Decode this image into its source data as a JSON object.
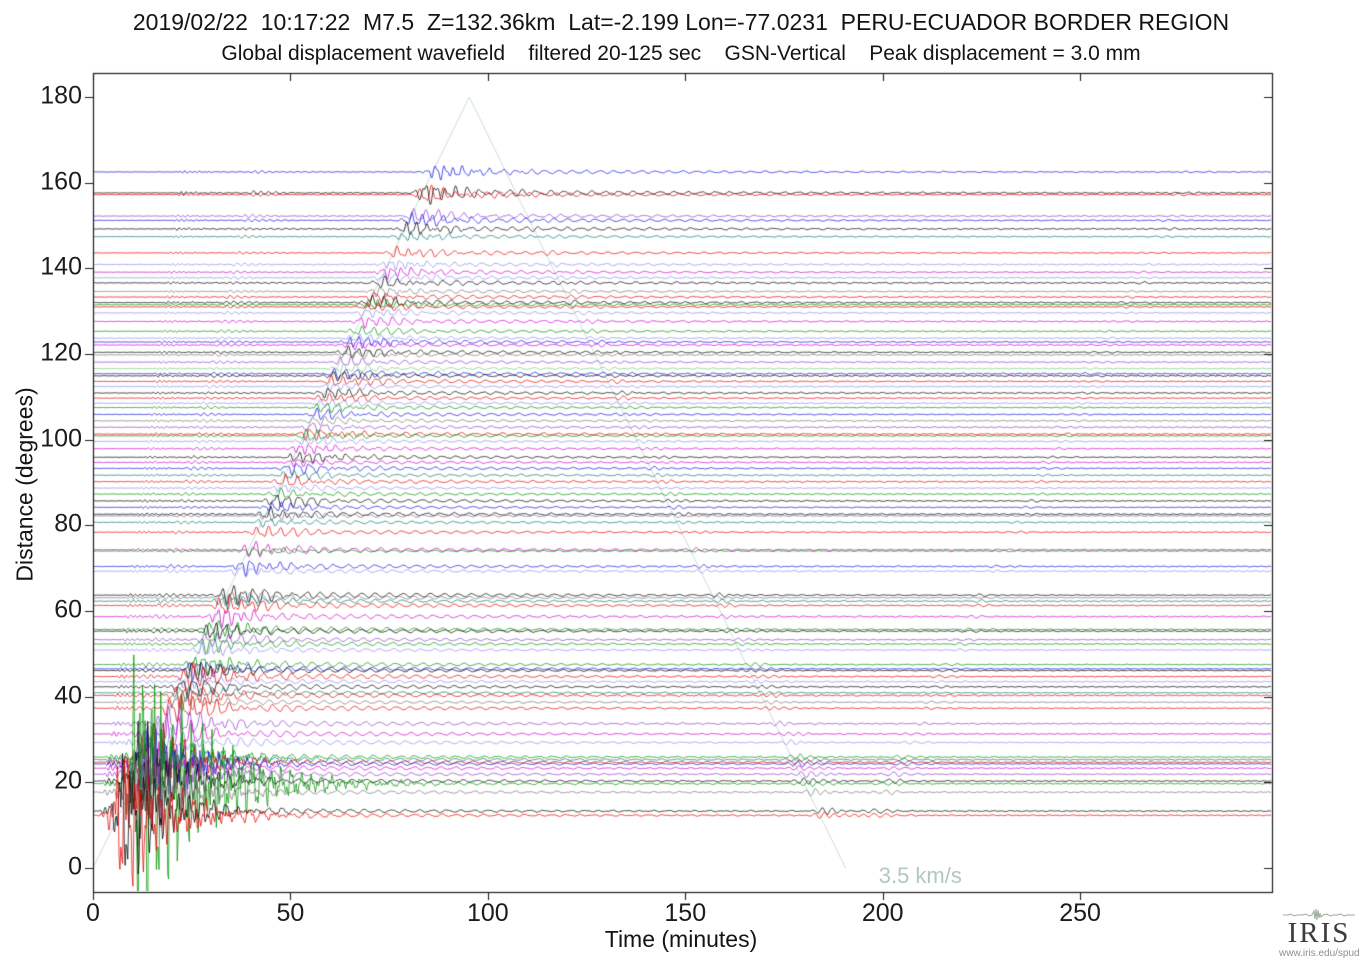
{
  "header": {
    "title_line1": "2019/02/22  10:17:22  M7.5  Z=132.36km  Lat=-2.199 Lon=-77.0231  PERU-ECUADOR BORDER REGION",
    "title_line2": "Global displacement wavefield    filtered 20-125 sec    GSN-Vertical    Peak displacement = 3.0 mm",
    "event": {
      "date": "2019/02/22",
      "time": "10:17:22",
      "magnitude": "M7.5",
      "depth": "Z=132.36km",
      "lat": "Lat=-2.199",
      "lon": "Lon=-77.0231",
      "region": "PERU-ECUADOR BORDER REGION",
      "wavefield": "Global displacement wavefield",
      "filter": "filtered 20-125 sec",
      "component": "GSN-Vertical",
      "peak": "Peak displacement = 3.0 mm"
    }
  },
  "footer": {
    "brand": "IRIS",
    "url": "www.iris.edu/spud"
  },
  "chart_data": {
    "type": "line",
    "subtype": "seismic-record-section",
    "title": "2019/02/22  10:17:22  M7.5  Z=132.36km  Lat=-2.199 Lon=-77.0231  PERU-ECUADOR BORDER REGION",
    "subtitle": "Global displacement wavefield    filtered 20-125 sec    GSN-Vertical    Peak displacement = 3.0 mm",
    "xlabel": "Time (minutes)",
    "ylabel": "Distance (degrees)",
    "xlim": [
      0,
      298.6
    ],
    "ylim": [
      -5.6,
      185.6
    ],
    "x_ticks": [
      0,
      50,
      100,
      150,
      200,
      250
    ],
    "y_ticks": [
      0,
      20,
      40,
      60,
      80,
      100,
      120,
      140,
      160,
      180
    ],
    "grid": false,
    "legend": "none",
    "moveout": {
      "label": "3.5 km/s",
      "velocity_km_s": 3.5,
      "color": "#ccdcdc",
      "vertices_time_dist": [
        [
          0,
          0
        ],
        [
          95.3,
          180
        ],
        [
          190.6,
          0
        ]
      ],
      "label_pos_time_dist": [
        199.0,
        -1.8
      ]
    },
    "palette": {
      "k": "#000000",
      "r": "#e80000",
      "b": "#1414e0",
      "lb": "#8c8cf0",
      "g": "#009300",
      "lg": "#74d074",
      "m": "#d000d0",
      "v": "#9040c8",
      "t": "#107878",
      "gy": "#787878"
    },
    "axis_color": "#1c1c1c",
    "traces_note": "each trace = one GSN station seismogram plotted at its epicentral distance; d=distance(deg), c=color key, a=peak surface-wave amplitude (px of plot)",
    "traces": [
      {
        "d": 162.5,
        "c": "b",
        "a": 9
      },
      {
        "d": 157.6,
        "c": "k",
        "a": 13
      },
      {
        "d": 157.2,
        "c": "r",
        "a": 10
      },
      {
        "d": 152.2,
        "c": "v",
        "a": 8
      },
      {
        "d": 151.2,
        "c": "b",
        "a": 9
      },
      {
        "d": 149.2,
        "c": "k",
        "a": 8
      },
      {
        "d": 147.4,
        "c": "t",
        "a": 6
      },
      {
        "d": 143.6,
        "c": "r",
        "a": 7
      },
      {
        "d": 140.9,
        "c": "lb",
        "a": 6
      },
      {
        "d": 139.1,
        "c": "m",
        "a": 7
      },
      {
        "d": 137.8,
        "c": "lb",
        "a": 6
      },
      {
        "d": 136.6,
        "c": "k",
        "a": 7
      },
      {
        "d": 134.6,
        "c": "gy",
        "a": 6
      },
      {
        "d": 133.3,
        "c": "r",
        "a": 7
      },
      {
        "d": 132.0,
        "c": "k",
        "a": 8
      },
      {
        "d": 131.5,
        "c": "g",
        "a": 7
      },
      {
        "d": 131.0,
        "c": "r",
        "a": 6
      },
      {
        "d": 129.6,
        "c": "lb",
        "a": 6
      },
      {
        "d": 127.6,
        "c": "m",
        "a": 7
      },
      {
        "d": 125.3,
        "c": "g",
        "a": 6
      },
      {
        "d": 123.7,
        "c": "lb",
        "a": 5
      },
      {
        "d": 122.8,
        "c": "b",
        "a": 7
      },
      {
        "d": 122.1,
        "c": "m",
        "a": 5
      },
      {
        "d": 120.4,
        "c": "k",
        "a": 7
      },
      {
        "d": 119.8,
        "c": "gy",
        "a": 5
      },
      {
        "d": 118.1,
        "c": "v",
        "a": 6
      },
      {
        "d": 116.6,
        "c": "lg",
        "a": 5
      },
      {
        "d": 115.4,
        "c": "b",
        "a": 7
      },
      {
        "d": 114.9,
        "c": "k",
        "a": 6
      },
      {
        "d": 113.6,
        "c": "r",
        "a": 7
      },
      {
        "d": 112.4,
        "c": "lb",
        "a": 5
      },
      {
        "d": 110.9,
        "c": "k",
        "a": 7
      },
      {
        "d": 109.7,
        "c": "r",
        "a": 6
      },
      {
        "d": 108.5,
        "c": "lb",
        "a": 5
      },
      {
        "d": 107.5,
        "c": "g",
        "a": 6
      },
      {
        "d": 105.9,
        "c": "b",
        "a": 7
      },
      {
        "d": 104.4,
        "c": "gy",
        "a": 5
      },
      {
        "d": 102.9,
        "c": "v",
        "a": 6
      },
      {
        "d": 101.3,
        "c": "r",
        "a": 7
      },
      {
        "d": 100.9,
        "c": "g",
        "a": 7
      },
      {
        "d": 99.6,
        "c": "lb",
        "a": 5
      },
      {
        "d": 97.9,
        "c": "m",
        "a": 6
      },
      {
        "d": 95.9,
        "c": "k",
        "a": 7
      },
      {
        "d": 94.7,
        "c": "m",
        "a": 5
      },
      {
        "d": 93.3,
        "c": "b",
        "a": 7
      },
      {
        "d": 91.7,
        "c": "t",
        "a": 6
      },
      {
        "d": 90.2,
        "c": "r",
        "a": 7
      },
      {
        "d": 88.7,
        "c": "lb",
        "a": 5
      },
      {
        "d": 87.3,
        "c": "g",
        "a": 6
      },
      {
        "d": 85.7,
        "c": "k",
        "a": 8
      },
      {
        "d": 84.2,
        "c": "b",
        "a": 6
      },
      {
        "d": 82.6,
        "c": "k",
        "a": 8
      },
      {
        "d": 82.2,
        "c": "gy",
        "a": 6
      },
      {
        "d": 80.7,
        "c": "t",
        "a": 6
      },
      {
        "d": 78.4,
        "c": "r",
        "a": 8
      },
      {
        "d": 74.3,
        "c": "m",
        "a": 10
      },
      {
        "d": 74.0,
        "c": "g",
        "a": 5
      },
      {
        "d": 70.4,
        "c": "b",
        "a": 9
      },
      {
        "d": 69.3,
        "c": "lb",
        "a": 7
      },
      {
        "d": 63.7,
        "c": "k",
        "a": 14
      },
      {
        "d": 63.1,
        "c": "gy",
        "a": 10
      },
      {
        "d": 62.3,
        "c": "t",
        "a": 9
      },
      {
        "d": 61.3,
        "c": "r",
        "a": 12
      },
      {
        "d": 58.7,
        "c": "m",
        "a": 12
      },
      {
        "d": 55.7,
        "c": "g",
        "a": 12
      },
      {
        "d": 55.3,
        "c": "k",
        "a": 11
      },
      {
        "d": 53.3,
        "c": "v",
        "a": 10
      },
      {
        "d": 52.3,
        "c": "g",
        "a": 10
      },
      {
        "d": 50.9,
        "c": "lb",
        "a": 9
      },
      {
        "d": 47.5,
        "c": "g",
        "a": 12
      },
      {
        "d": 46.5,
        "c": "b",
        "a": 12
      },
      {
        "d": 46.1,
        "c": "k",
        "a": 11
      },
      {
        "d": 44.7,
        "c": "r",
        "a": 16
      },
      {
        "d": 43.5,
        "c": "lb",
        "a": 9
      },
      {
        "d": 42.3,
        "c": "k",
        "a": 12
      },
      {
        "d": 40.9,
        "c": "t",
        "a": 10
      },
      {
        "d": 40.3,
        "c": "r",
        "a": 15
      },
      {
        "d": 38.7,
        "c": "gy",
        "a": 10
      },
      {
        "d": 37.3,
        "c": "r",
        "a": 18
      },
      {
        "d": 33.7,
        "c": "v",
        "a": 20
      },
      {
        "d": 31.3,
        "c": "m",
        "a": 24
      },
      {
        "d": 29.3,
        "c": "lb",
        "a": 20
      },
      {
        "d": 25.9,
        "c": "g",
        "a": 34
      },
      {
        "d": 25.3,
        "c": "t",
        "a": 30
      },
      {
        "d": 24.7,
        "c": "r",
        "a": 40
      },
      {
        "d": 24.3,
        "c": "b",
        "a": 38
      },
      {
        "d": 23.3,
        "c": "m",
        "a": 30
      },
      {
        "d": 21.9,
        "c": "v",
        "a": 48
      },
      {
        "d": 20.3,
        "c": "k",
        "a": 55
      },
      {
        "d": 19.7,
        "c": "g",
        "a": 130
      },
      {
        "d": 17.7,
        "c": "gy",
        "a": 45
      },
      {
        "d": 13.3,
        "c": "k",
        "a": 60
      },
      {
        "d": 12.3,
        "c": "r",
        "a": 65
      }
    ]
  }
}
